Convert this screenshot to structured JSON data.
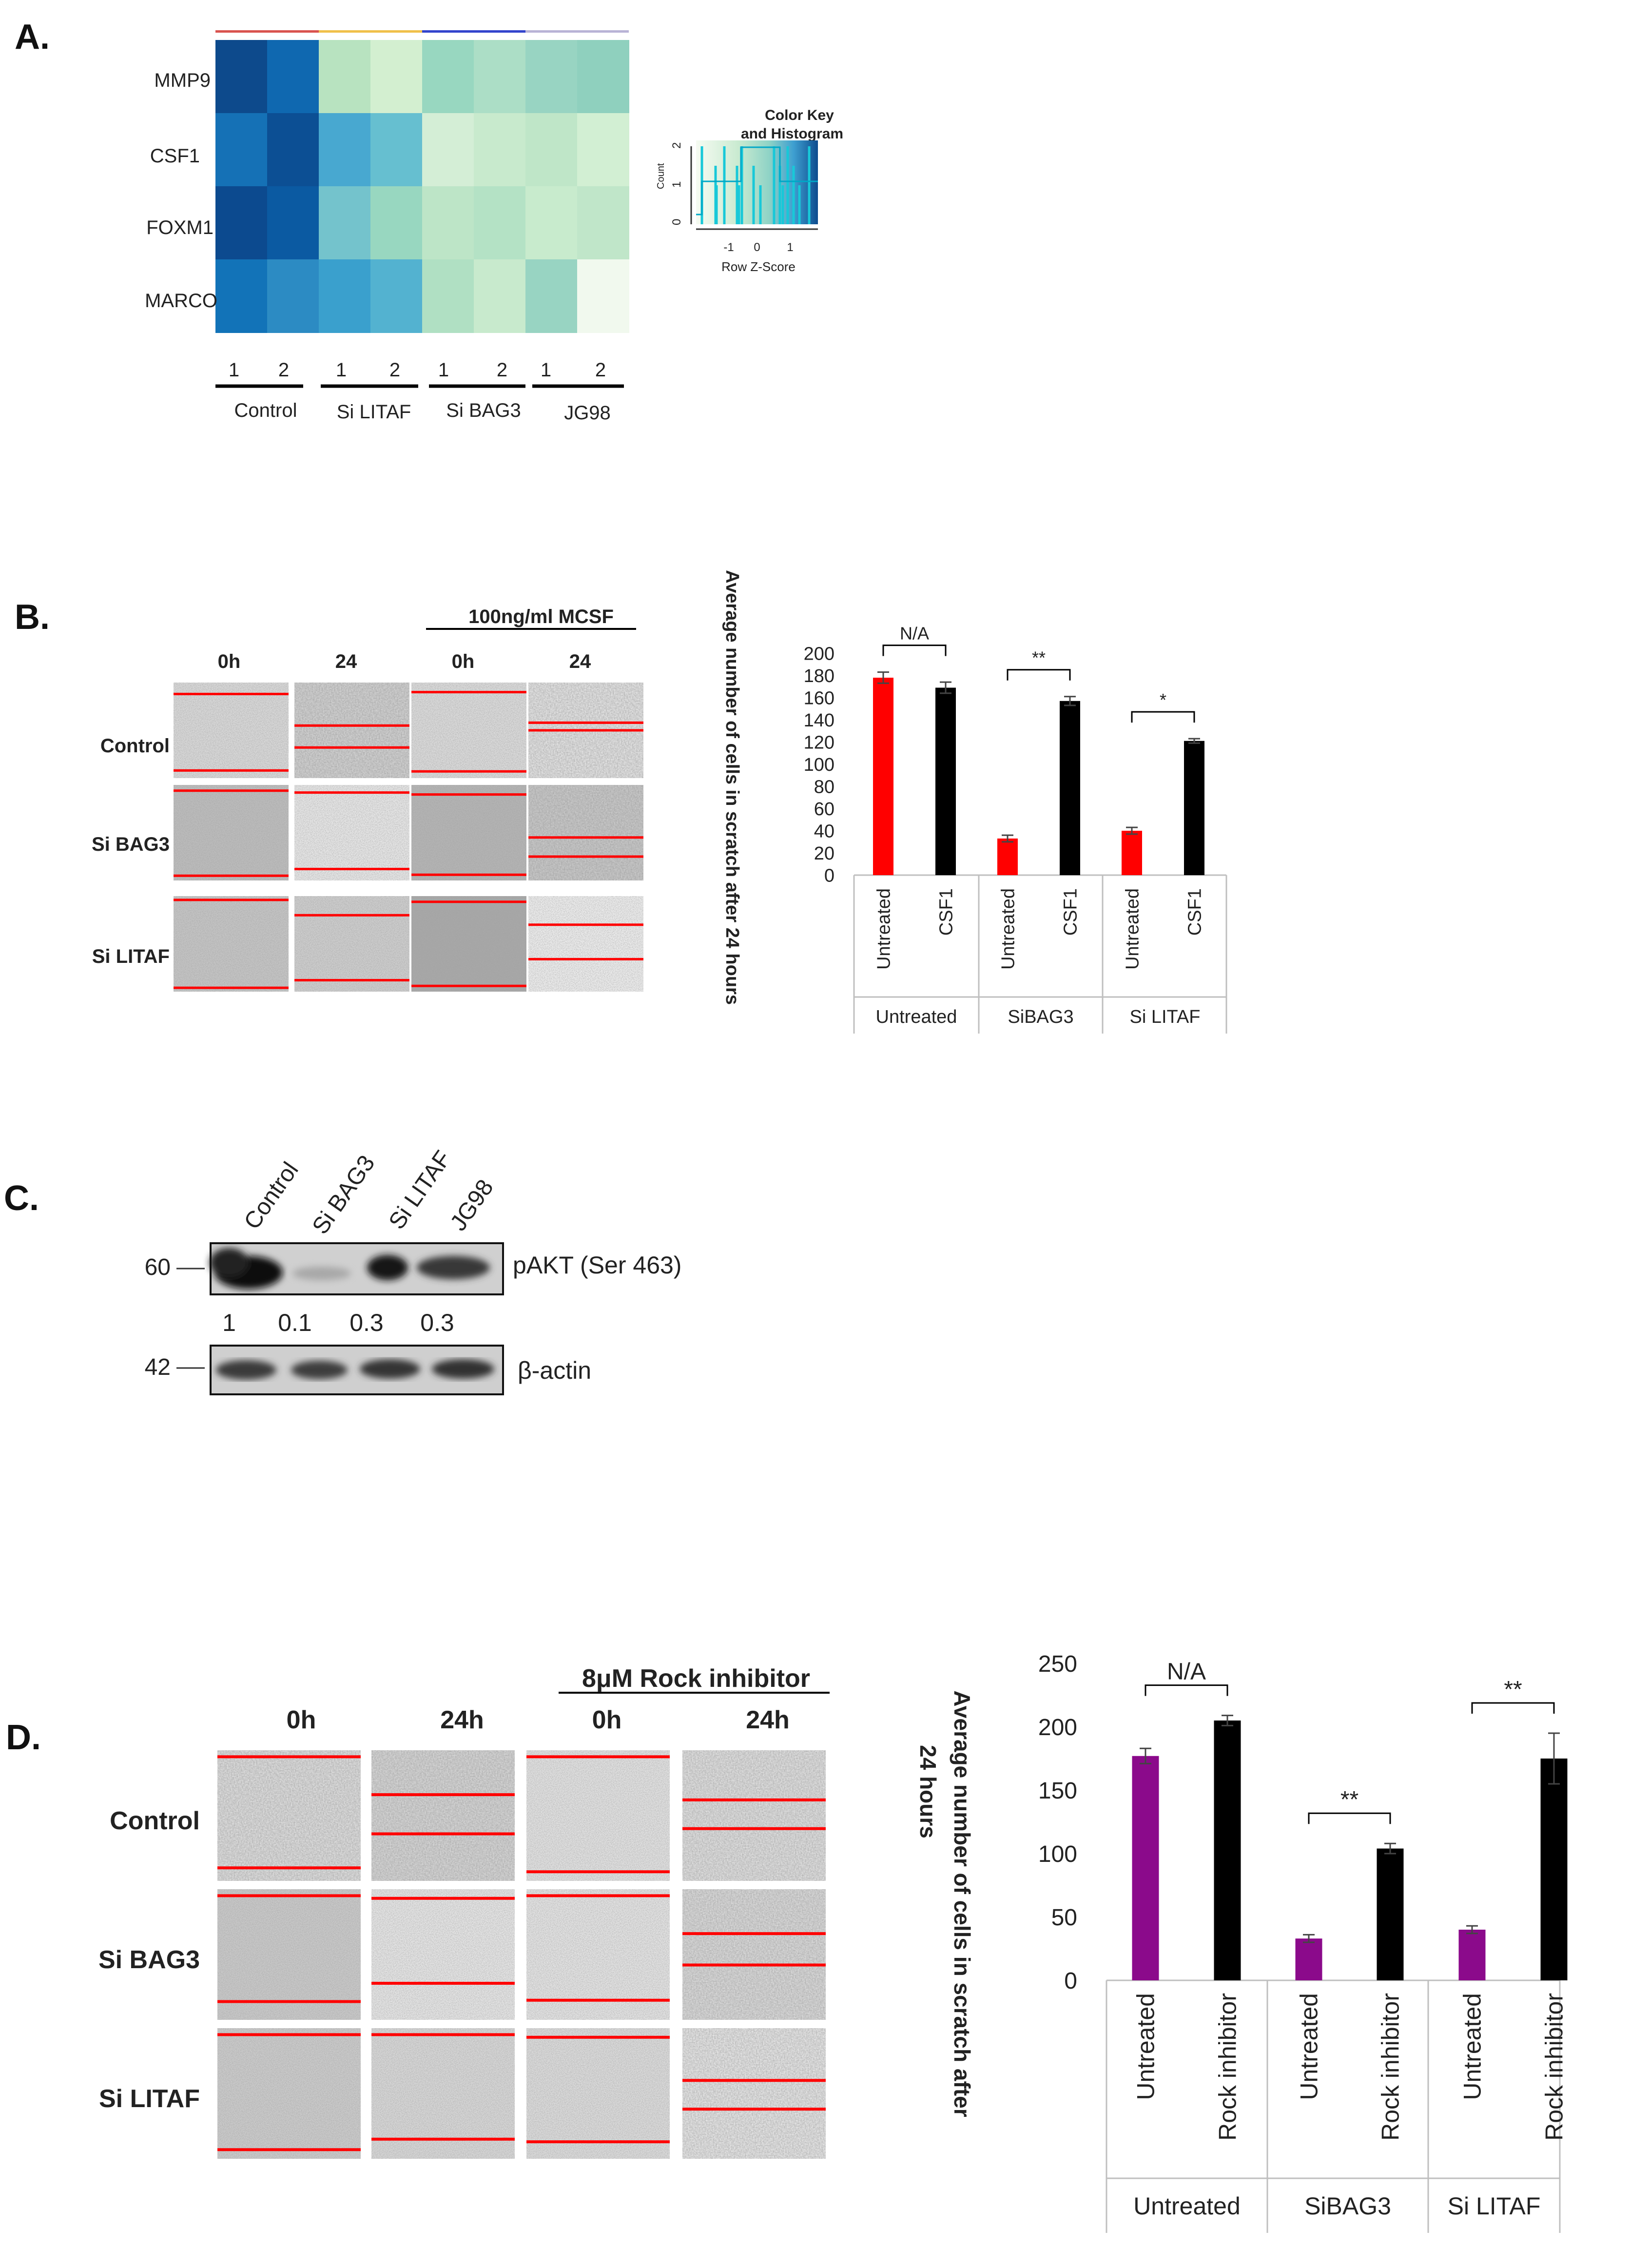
{
  "panels": {
    "a": {
      "letter": "A.",
      "genes": [
        "MMP9",
        "CSF1",
        "FOXM1",
        "MARCO"
      ],
      "replicate_labels": [
        "1",
        "2",
        "1",
        "2",
        "1",
        "2",
        "1",
        "2"
      ],
      "groups": [
        "Control",
        "Si LITAF",
        "Si BAG3",
        "JG98"
      ],
      "group_colors": [
        "#d9534f",
        "#f0c04a",
        "#3344cc",
        "#b9b3d6"
      ],
      "heatmap_colors": [
        [
          "#0d4a8c",
          "#0f68b0",
          "#b8e3c0",
          "#d3efd0",
          "#98d7c0",
          "#acdec6",
          "#98d4c2",
          "#8fd0be"
        ],
        [
          "#1571b6",
          "#0c4f94",
          "#48a8d0",
          "#66bfd0",
          "#d4eed6",
          "#c8eacd",
          "#bfe6c8",
          "#d2efd3"
        ],
        [
          "#0c4a8f",
          "#0b5aa2",
          "#74c3cc",
          "#98d7c0",
          "#bde5c7",
          "#b4e2c5",
          "#c8ebcd",
          "#c0e6c9"
        ],
        [
          "#1273b8",
          "#2c8bc3",
          "#3aa0cd",
          "#53b2d0",
          "#b0e0c3",
          "#c8eacd",
          "#98d4c2",
          "#f1f9ee"
        ]
      ],
      "color_key": {
        "title_line1": "Color Key",
        "title_line2": "and Histogram",
        "y_label": "Count",
        "y_ticks": [
          "0",
          "1",
          "2"
        ],
        "x_ticks": [
          "-1",
          "0",
          "1"
        ],
        "x_label": "Row Z-Score"
      }
    },
    "b": {
      "letter": "B.",
      "treatment_label": "100ng/ml MCSF",
      "time_labels": [
        "0h",
        "24",
        "0h",
        "24"
      ],
      "row_labels": [
        "Control",
        "Si BAG3",
        "Si LITAF"
      ],
      "chart_data": {
        "type": "bar",
        "ylabel": "Average number of cells in scratch after 24 hours",
        "ylim": [
          0,
          200
        ],
        "yticks": [
          0,
          20,
          40,
          60,
          80,
          100,
          120,
          140,
          160,
          180,
          200
        ],
        "groups": [
          "Untreated",
          "SiBAG3",
          "Si LITAF"
        ],
        "categories": [
          "Untreated",
          "CSF1",
          "Untreated",
          "CSF1",
          "Untreated",
          "CSF1"
        ],
        "values": [
          178,
          169,
          33,
          157,
          40,
          121
        ],
        "errors": [
          5,
          5,
          3,
          4,
          3,
          2
        ],
        "colors": [
          "#ff0000",
          "#000000",
          "#ff0000",
          "#000000",
          "#ff0000",
          "#000000"
        ],
        "significance": [
          "N/A",
          "**",
          "*"
        ]
      }
    },
    "c": {
      "letter": "C.",
      "lanes": [
        "Control",
        "Si BAG3",
        "Si LITAF",
        "JG98"
      ],
      "mw_top": "60",
      "mw_bottom": "42",
      "band_top": "pAKT (Ser 463)",
      "band_bottom": "β-actin",
      "quant": [
        "1",
        "0.1",
        "0.3",
        "0.3"
      ]
    },
    "d": {
      "letter": "D.",
      "treatment_label": "8μM Rock inhibitor",
      "time_labels": [
        "0h",
        "24h",
        "0h",
        "24h"
      ],
      "row_labels": [
        "Control",
        "Si BAG3",
        "Si LITAF"
      ],
      "chart_data": {
        "type": "bar",
        "ylabel": "Average number of cells in scratch after 24 hours",
        "ylim": [
          0,
          250
        ],
        "yticks": [
          0,
          50,
          100,
          150,
          200,
          250
        ],
        "groups": [
          "Untreated",
          "SiBAG3",
          "Si LITAF"
        ],
        "categories": [
          "Untreated",
          "Rock inhibitor",
          "Untreated",
          "Rock inhibitor",
          "Untreated",
          "Rock inhibitor"
        ],
        "values": [
          177,
          205,
          33,
          104,
          40,
          175
        ],
        "errors": [
          6,
          4,
          3,
          4,
          3,
          20
        ],
        "colors": [
          "#8b0a8b",
          "#000000",
          "#8b0a8b",
          "#000000",
          "#8b0a8b",
          "#000000"
        ],
        "significance": [
          "N/A",
          "**",
          "**"
        ]
      }
    }
  }
}
